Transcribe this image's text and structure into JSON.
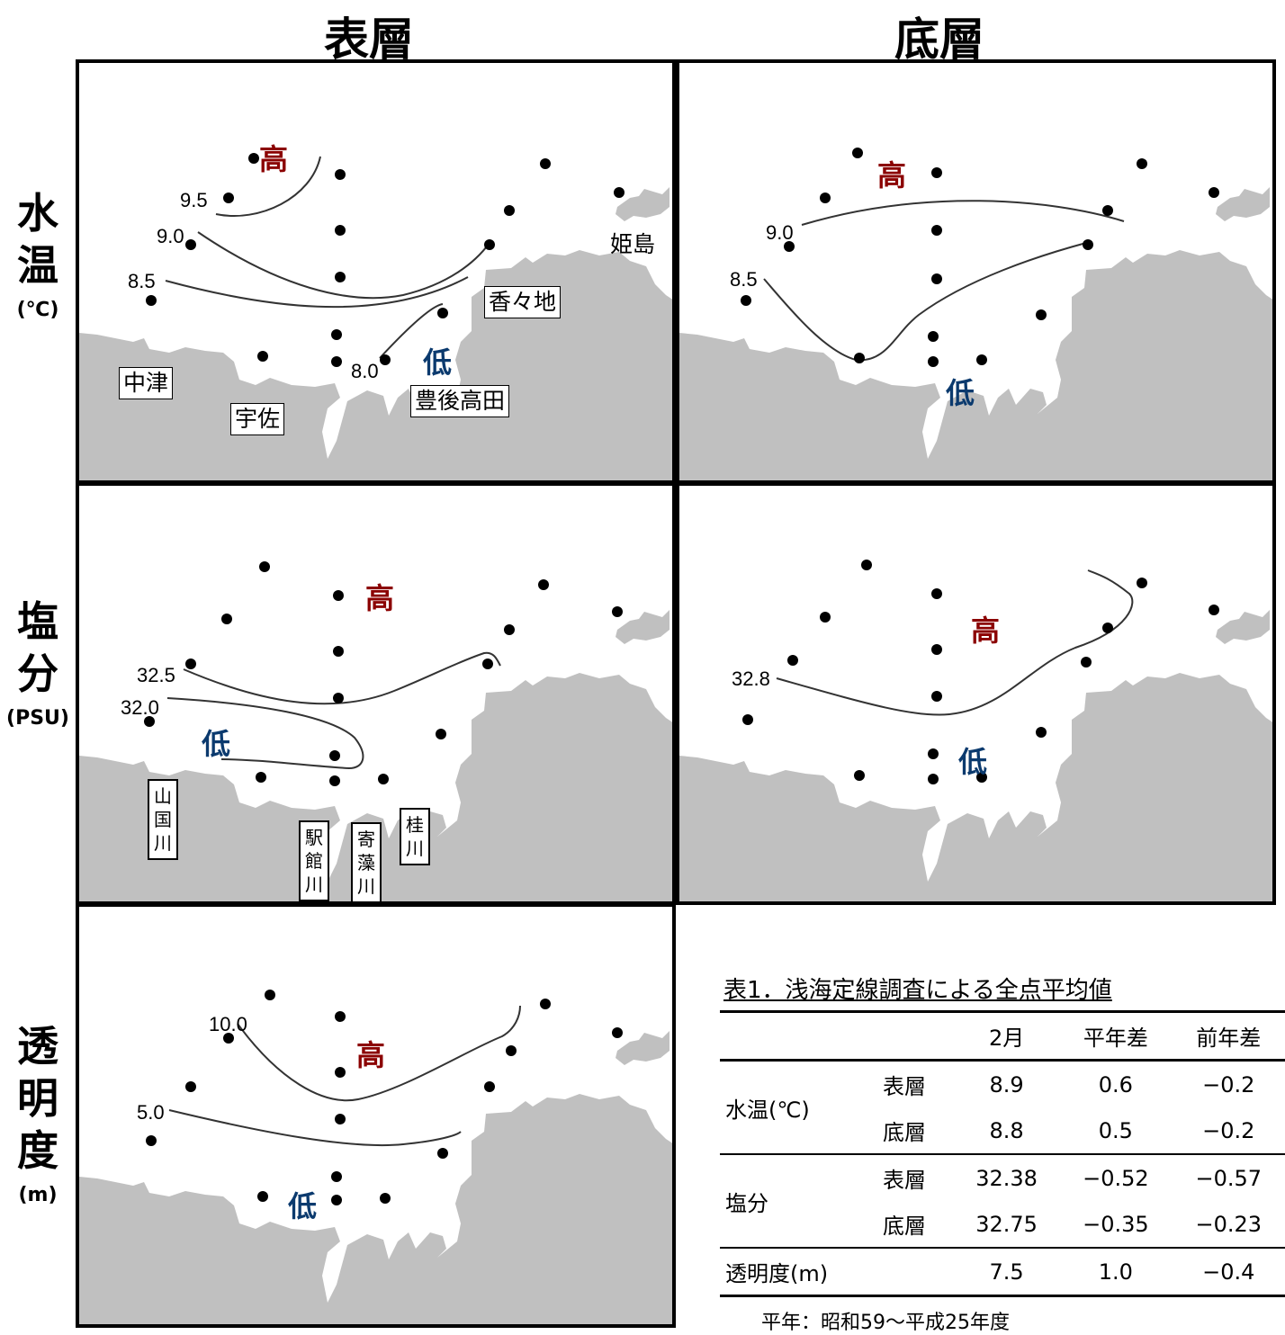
{
  "columns": {
    "surface": "表層",
    "bottom": "底層"
  },
  "rows": {
    "temp": {
      "label_chars": [
        "水",
        "温"
      ],
      "unit": "(℃)"
    },
    "salinity": {
      "label_chars": [
        "塩",
        "分"
      ],
      "unit": "(PSU)"
    },
    "transparency": {
      "label_chars": [
        "透",
        "明",
        "度"
      ],
      "unit": "(m)"
    }
  },
  "marks": {
    "high": "高",
    "low": "低"
  },
  "places": {
    "nakatsu": "中津",
    "usa": "宇佐",
    "kakuji": "香々地",
    "bungo_takada": "豊後高田",
    "himeshima": "姫島",
    "yamakuni": "山国川",
    "ekitate": "駅館川",
    "yorimo": "寄藻川",
    "katsura": "桂川"
  },
  "contours": {
    "temp_surface": [
      "9.5",
      "9.0",
      "8.5",
      "8.0"
    ],
    "temp_bottom": [
      "9.0",
      "8.5"
    ],
    "salinity_surface": [
      "32.5",
      "32.0"
    ],
    "salinity_bottom": [
      "32.8"
    ],
    "transparency_surface": [
      "10.0",
      "5.0"
    ]
  },
  "colors": {
    "land": "#c0c0c0",
    "high": "#8b0000",
    "low": "#0b3a6e"
  },
  "table": {
    "title": "表1．浅海定線調査による全点平均値",
    "headers": [
      "2月",
      "平年差",
      "前年差"
    ],
    "rows": [
      {
        "group": "水温(℃)",
        "layer": "表層",
        "values": [
          "8.9",
          "0.6",
          "−0.2"
        ]
      },
      {
        "group": "",
        "layer": "底層",
        "values": [
          "8.8",
          "0.5",
          "−0.2"
        ]
      },
      {
        "group": "塩分",
        "layer": "表層",
        "values": [
          "32.38",
          "−0.52",
          "−0.57"
        ]
      },
      {
        "group": "",
        "layer": "底層",
        "values": [
          "32.75",
          "−0.35",
          "−0.23"
        ]
      },
      {
        "group": "透明度(m)",
        "layer": "",
        "values": [
          "7.5",
          "1.0",
          "−0.4"
        ]
      }
    ],
    "note": "平年：昭和59～平成25年度"
  }
}
